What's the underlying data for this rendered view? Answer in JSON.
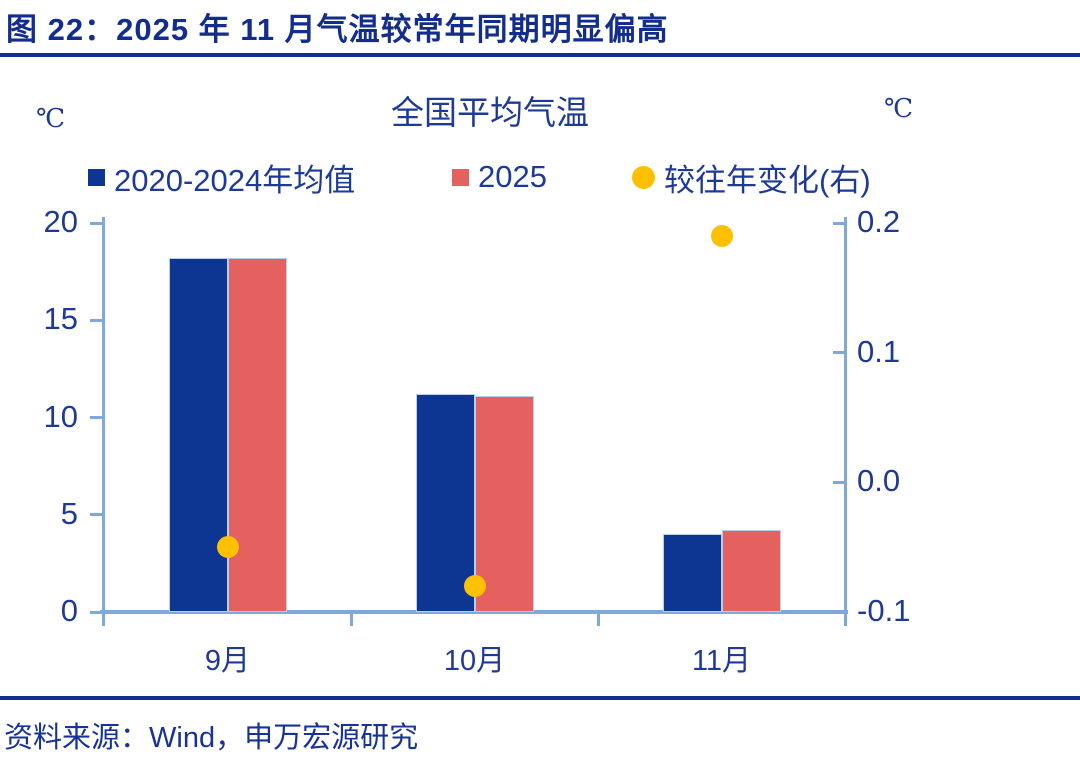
{
  "header": {
    "title": "图 22：2025 年 11 月气温较常年同期明显偏高"
  },
  "chart": {
    "units": {
      "left": "℃",
      "right": "℃"
    }
  },
  "chart_data": {
    "type": "bar",
    "title": "全国平均气温",
    "categories": [
      "9月",
      "10月",
      "11月"
    ],
    "series": [
      {
        "name": "2020-2024年均值",
        "type": "bar",
        "axis": "left",
        "color": "#0D3693",
        "values": [
          18.2,
          11.2,
          4.0
        ]
      },
      {
        "name": "2025",
        "type": "bar",
        "axis": "left",
        "color": "#E5615F",
        "values": [
          18.2,
          11.1,
          4.2
        ]
      },
      {
        "name": "较往年变化(右)",
        "type": "scatter",
        "axis": "right",
        "color": "#FFC000",
        "values": [
          -0.05,
          -0.08,
          0.19
        ]
      }
    ],
    "left_axis": {
      "min": 0,
      "max": 20,
      "ticks": [
        0,
        5,
        10,
        15,
        20
      ],
      "tick_labels": [
        "0",
        "5",
        "10",
        "15",
        "20"
      ]
    },
    "right_axis": {
      "min": -0.1,
      "max": 0.2,
      "ticks": [
        -0.1,
        0.0,
        0.1,
        0.2
      ],
      "tick_labels": [
        "-0.1",
        "0.0",
        "0.1",
        "0.2"
      ]
    },
    "legend_position": "top",
    "grid": false
  },
  "colors": {
    "header_navy": "#122D8E",
    "text_navy": "#1E3A99",
    "axis_light_blue": "#7FA8DC",
    "bar_blue": "#0D3693",
    "bar_red": "#E5615F",
    "dot_yellow": "#FFC000"
  },
  "footer": {
    "source": "资料来源：Wind，申万宏源研究"
  }
}
